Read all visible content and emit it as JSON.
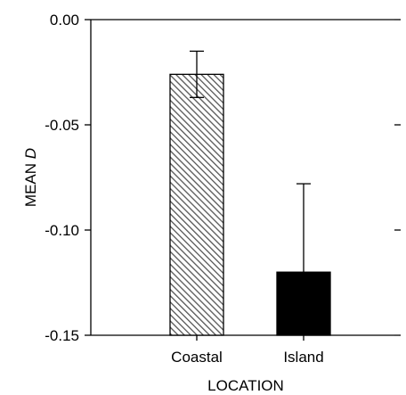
{
  "chart_data": {
    "type": "bar",
    "categories": [
      "Coastal",
      "Island"
    ],
    "values": [
      -0.026,
      -0.12
    ],
    "error_upper": [
      -0.015,
      -0.078
    ],
    "error_lower": [
      -0.037,
      null
    ],
    "ylim": [
      -0.15,
      0.0
    ],
    "yticks": [
      0.0,
      -0.05,
      -0.1,
      -0.15
    ],
    "ytick_labels": [
      "0.00",
      "-0.05",
      "-0.10",
      "-0.15"
    ],
    "xlabel": "LOCATION",
    "ylabel_main": "MEAN",
    "ylabel_symbol": "D",
    "grid": false,
    "bar_styles": [
      "hatched",
      "solid-black"
    ],
    "colors": {
      "hatch": "#555555",
      "solid": "#000000",
      "axis": "#000000"
    }
  }
}
